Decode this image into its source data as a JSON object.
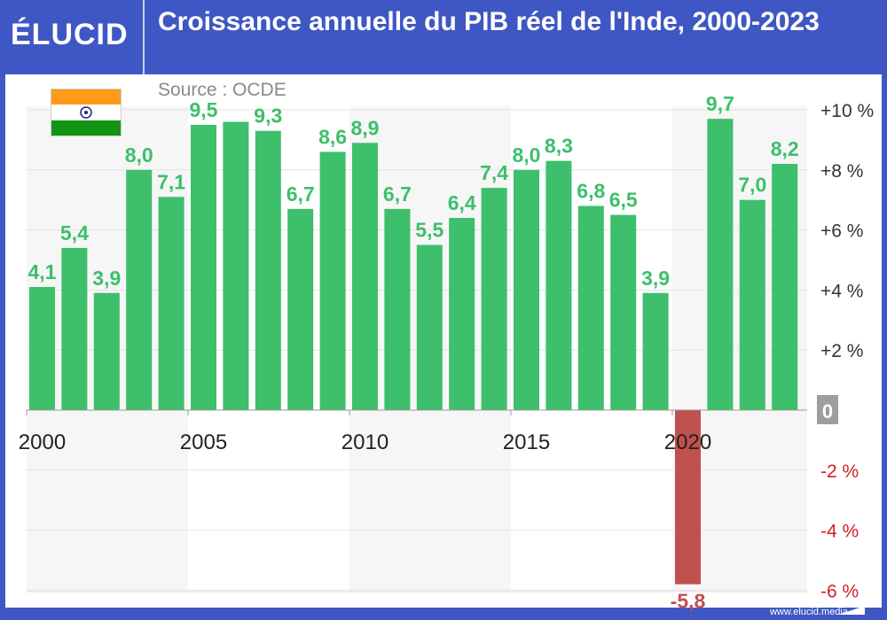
{
  "header": {
    "logo": "ÉLUCID",
    "title": "Croissance annuelle du PIB réel de l'Inde, 2000-2023",
    "source": "Source : OCDE"
  },
  "footer": {
    "url": "www.elucid.media"
  },
  "colors": {
    "positive": "#3dbf6b",
    "negative": "#c0504d",
    "brand": "#3f57c4"
  },
  "chart_data": {
    "type": "bar",
    "title": "Croissance annuelle du PIB réel de l'Inde, 2000-2023",
    "xlabel": "",
    "ylabel": "",
    "categories": [
      2000,
      2001,
      2002,
      2003,
      2004,
      2005,
      2006,
      2007,
      2008,
      2009,
      2010,
      2011,
      2012,
      2013,
      2014,
      2015,
      2016,
      2017,
      2018,
      2019,
      2020,
      2021,
      2022,
      2023
    ],
    "values": [
      4.1,
      5.4,
      3.9,
      8.0,
      7.1,
      9.5,
      9.6,
      9.3,
      6.7,
      8.6,
      8.9,
      6.7,
      5.5,
      6.4,
      7.4,
      8.0,
      8.3,
      6.8,
      6.5,
      3.9,
      -5.8,
      9.7,
      7.0,
      8.2
    ],
    "data_labels": [
      "4,1",
      "5,4",
      "3,9",
      "8,0",
      "7,1",
      "9,5",
      "",
      "9,3",
      "6,7",
      "8,6",
      "8,9",
      "6,7",
      "5,5",
      "6,4",
      "7,4",
      "8,0",
      "8,3",
      "6,8",
      "6,5",
      "3,9",
      "-5,8",
      "9,7",
      "7,0",
      "8,2"
    ],
    "x_tick_labels": [
      "2000",
      "2005",
      "2010",
      "2015",
      "2020"
    ],
    "y_ticks": [
      10,
      8,
      6,
      4,
      2,
      0,
      -2,
      -4,
      -6
    ],
    "y_tick_labels": [
      "+10 %",
      "+8 %",
      "+6 %",
      "+4 %",
      "+2 %",
      "0",
      "-2 %",
      "-4 %",
      "-6 %"
    ],
    "ylim": [
      -6,
      10
    ],
    "grid": true,
    "legend": "none"
  }
}
